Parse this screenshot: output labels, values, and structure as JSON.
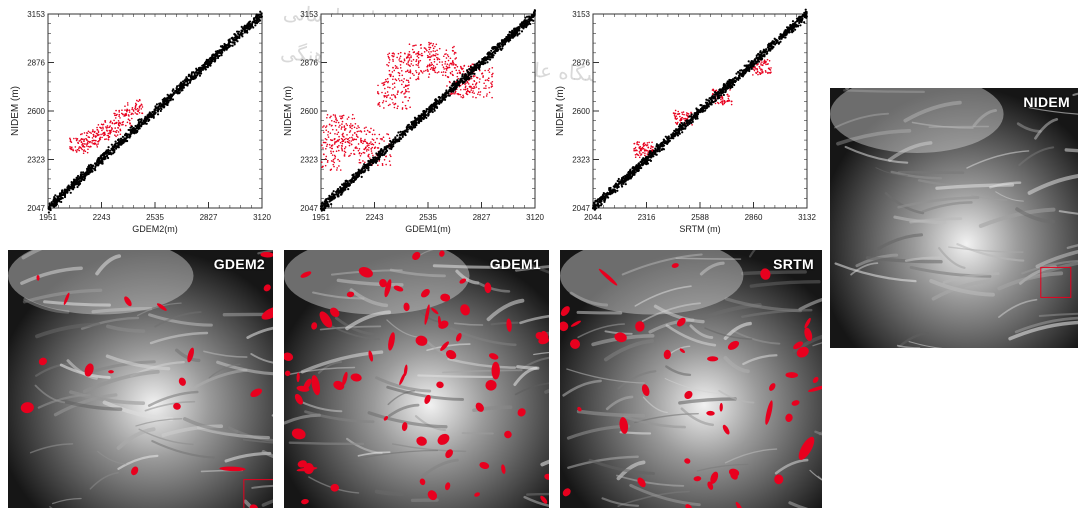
{
  "chart_data": [
    {
      "type": "scatter",
      "xlabel": "GDEM2(m)",
      "ylabel": "NIDEM (m)",
      "xticks": [
        "1951",
        "2243",
        "2535",
        "2827",
        "3120"
      ],
      "yticks": [
        "2047",
        "2323",
        "2600",
        "2876",
        "3153"
      ],
      "xlim": [
        1951,
        3120
      ],
      "ylim": [
        2047,
        3153
      ],
      "series": [
        {
          "color": "#000000",
          "x": [
            1951,
            2243,
            2535,
            2827,
            3120
          ],
          "y": [
            2047,
            2323,
            2600,
            2876,
            3153
          ]
        },
        {
          "color": "#e8001e",
          "x": [
            2120,
            2180,
            2240,
            2300,
            2360,
            2420
          ],
          "y": [
            2400,
            2440,
            2480,
            2500,
            2560,
            2620
          ]
        }
      ]
    },
    {
      "type": "scatter",
      "xlabel": "GDEM1(m)",
      "ylabel": "NIDEM (m)",
      "xticks": [
        "1951",
        "2243",
        "2535",
        "2827",
        "3120"
      ],
      "yticks": [
        "2047",
        "2323",
        "2600",
        "2876",
        "3153"
      ],
      "xlim": [
        1951,
        3120
      ],
      "ylim": [
        2047,
        3153
      ],
      "series": [
        {
          "color": "#000000",
          "x": [
            1951,
            2243,
            2535,
            2827,
            3120
          ],
          "y": [
            2047,
            2323,
            2600,
            2876,
            3153
          ]
        },
        {
          "color": "#e8001e",
          "x": [
            1980,
            2050,
            2150,
            2250,
            2350,
            2400,
            2500,
            2600,
            2700,
            2800
          ],
          "y": [
            2350,
            2500,
            2430,
            2380,
            2700,
            2850,
            2900,
            2880,
            2780,
            2760
          ]
        }
      ]
    },
    {
      "type": "scatter",
      "xlabel": "SRTM (m)",
      "ylabel": "NIDEM (m)",
      "xticks": [
        "2044",
        "2316",
        "2588",
        "2860",
        "3132"
      ],
      "yticks": [
        "2047",
        "2323",
        "2600",
        "2876",
        "3153"
      ],
      "xlim": [
        2044,
        3132
      ],
      "ylim": [
        2047,
        3153
      ],
      "series": [
        {
          "color": "#000000",
          "x": [
            2044,
            2316,
            2588,
            2860,
            3132
          ],
          "y": [
            2047,
            2323,
            2600,
            2876,
            3153
          ]
        },
        {
          "color": "#e8001e",
          "x": [
            2300,
            2500,
            2700,
            2900
          ],
          "y": [
            2380,
            2560,
            2680,
            2850
          ]
        }
      ]
    }
  ],
  "dems": [
    {
      "label": "GDEM2"
    },
    {
      "label": "GDEM1"
    },
    {
      "label": "SRTM"
    },
    {
      "label": "NIDEM"
    }
  ],
  "colors": {
    "error": "#e8001e",
    "points": "#000000"
  }
}
